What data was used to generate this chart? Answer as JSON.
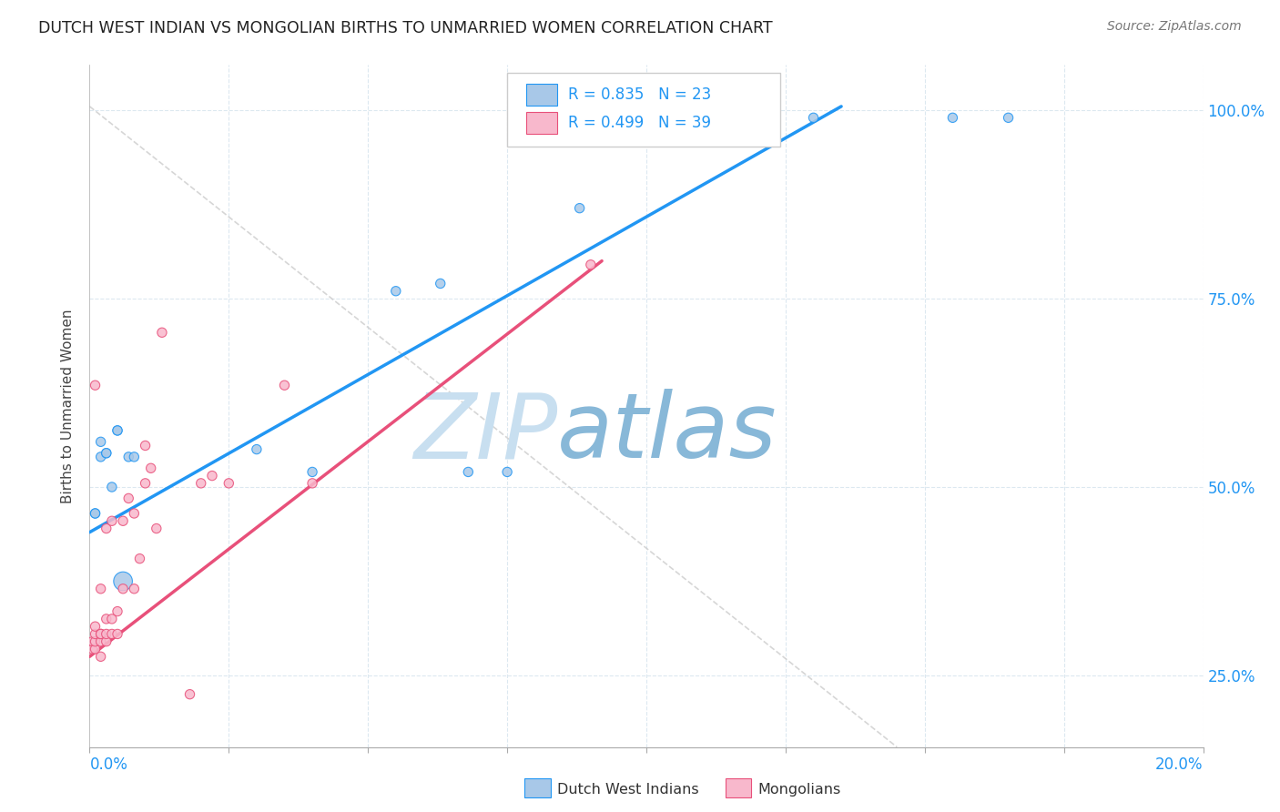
{
  "title": "DUTCH WEST INDIAN VS MONGOLIAN BIRTHS TO UNMARRIED WOMEN CORRELATION CHART",
  "source": "Source: ZipAtlas.com",
  "ylabel": "Births to Unmarried Women",
  "yaxis_labels": [
    "25.0%",
    "50.0%",
    "75.0%",
    "100.0%"
  ],
  "yaxis_values": [
    0.25,
    0.5,
    0.75,
    1.0
  ],
  "xlim": [
    0.0,
    0.2
  ],
  "ylim": [
    0.155,
    1.06
  ],
  "legend_blue_r": "R = 0.835",
  "legend_blue_n": "N = 23",
  "legend_pink_r": "R = 0.499",
  "legend_pink_n": "N = 39",
  "blue_color": "#a8c8e8",
  "pink_color": "#f8b8cc",
  "blue_line_color": "#2196F3",
  "pink_line_color": "#e8507a",
  "watermark_zip": "ZIP",
  "watermark_atlas": "atlas",
  "watermark_color_zip": "#c8dff0",
  "watermark_color_atlas": "#88b8d8",
  "blue_dots_x": [
    0.001,
    0.001,
    0.002,
    0.002,
    0.003,
    0.003,
    0.004,
    0.005,
    0.005,
    0.006,
    0.007,
    0.008,
    0.03,
    0.04,
    0.055,
    0.063,
    0.068,
    0.075,
    0.088,
    0.11,
    0.13,
    0.155,
    0.165
  ],
  "blue_dots_y": [
    0.465,
    0.465,
    0.56,
    0.54,
    0.545,
    0.545,
    0.5,
    0.575,
    0.575,
    0.375,
    0.54,
    0.54,
    0.55,
    0.52,
    0.76,
    0.77,
    0.52,
    0.52,
    0.87,
    0.99,
    0.99,
    0.99,
    0.99
  ],
  "blue_dots_size": [
    55,
    55,
    55,
    55,
    55,
    55,
    55,
    55,
    55,
    220,
    55,
    55,
    55,
    55,
    55,
    55,
    55,
    55,
    55,
    55,
    55,
    55,
    55
  ],
  "pink_dots_x": [
    0.0005,
    0.0005,
    0.001,
    0.001,
    0.001,
    0.001,
    0.001,
    0.002,
    0.002,
    0.002,
    0.002,
    0.002,
    0.003,
    0.003,
    0.003,
    0.003,
    0.004,
    0.004,
    0.004,
    0.005,
    0.005,
    0.006,
    0.006,
    0.007,
    0.008,
    0.008,
    0.009,
    0.01,
    0.01,
    0.011,
    0.012,
    0.013,
    0.018,
    0.02,
    0.022,
    0.025,
    0.035,
    0.04,
    0.09
  ],
  "pink_dots_y": [
    0.285,
    0.295,
    0.285,
    0.295,
    0.305,
    0.315,
    0.635,
    0.275,
    0.295,
    0.305,
    0.305,
    0.365,
    0.295,
    0.305,
    0.325,
    0.445,
    0.305,
    0.325,
    0.455,
    0.305,
    0.335,
    0.365,
    0.455,
    0.485,
    0.365,
    0.465,
    0.405,
    0.555,
    0.505,
    0.525,
    0.445,
    0.705,
    0.225,
    0.505,
    0.515,
    0.505,
    0.635,
    0.505,
    0.795
  ],
  "pink_dots_size": [
    55,
    55,
    55,
    55,
    55,
    55,
    55,
    55,
    55,
    55,
    55,
    55,
    55,
    55,
    55,
    55,
    55,
    55,
    55,
    55,
    55,
    55,
    55,
    55,
    55,
    55,
    55,
    55,
    55,
    55,
    55,
    55,
    55,
    55,
    55,
    55,
    55,
    55,
    55
  ],
  "blue_line_x": [
    0.0,
    0.135
  ],
  "blue_line_y": [
    0.44,
    1.005
  ],
  "pink_line_x": [
    0.0,
    0.092
  ],
  "pink_line_y": [
    0.275,
    0.8
  ],
  "diag_line_x": [
    0.0,
    0.145
  ],
  "diag_line_y": [
    1.005,
    0.155
  ],
  "grid_color": "#dce8f0",
  "background_color": "#ffffff",
  "title_fontsize": 12.5,
  "source_fontsize": 10
}
